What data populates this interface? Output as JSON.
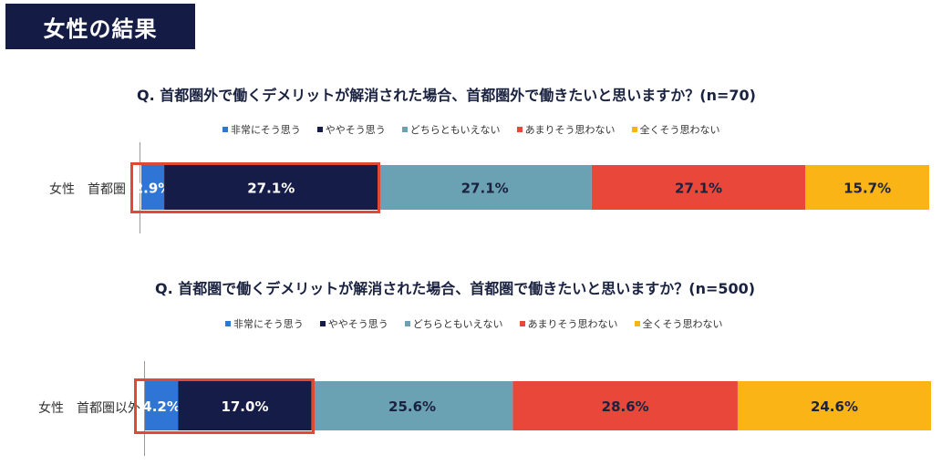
{
  "header": {
    "title": "女性の結果"
  },
  "legend": {
    "items": [
      {
        "label": "非常にそう思う",
        "color": "#2e75d6"
      },
      {
        "label": "ややそう思う",
        "color": "#151c48"
      },
      {
        "label": "どちらともいえない",
        "color": "#6aa2b3"
      },
      {
        "label": "あまりそう思わない",
        "color": "#e8473a"
      },
      {
        "label": "全くそう思わない",
        "color": "#fbb415"
      }
    ]
  },
  "chart_data": [
    {
      "type": "bar",
      "orientation": "horizontal-stacked-100",
      "title": "Q. 首都圏外で働くデメリットが解消された場合、首都圏外で働きたいと思いますか？(n=70)",
      "categories": [
        "女性　首都圏"
      ],
      "series": [
        {
          "name": "非常にそう思う",
          "values": [
            2.9
          ],
          "label": "2.9%"
        },
        {
          "name": "ややそう思う",
          "values": [
            27.1
          ],
          "label": "27.1%"
        },
        {
          "name": "どちらともいえない",
          "values": [
            27.1
          ],
          "label": "27.1%"
        },
        {
          "name": "あまりそう思わない",
          "values": [
            27.1
          ],
          "label": "27.1%"
        },
        {
          "name": "全くそう思わない",
          "values": [
            15.7
          ],
          "label": "15.7%"
        }
      ],
      "xlim": [
        0,
        100
      ],
      "highlighted_series": [
        "非常にそう思う",
        "ややそう思う"
      ]
    },
    {
      "type": "bar",
      "orientation": "horizontal-stacked-100",
      "title": "Q. 首都圏で働くデメリットが解消された場合、首都圏で働きたいと思いますか？(n=500)",
      "categories": [
        "女性　首都圏以外"
      ],
      "series": [
        {
          "name": "非常にそう思う",
          "values": [
            4.2
          ],
          "label": "4.2%"
        },
        {
          "name": "ややそう思う",
          "values": [
            17.0
          ],
          "label": "17.0%"
        },
        {
          "name": "どちらともいえない",
          "values": [
            25.6
          ],
          "label": "25.6%"
        },
        {
          "name": "あまりそう思わない",
          "values": [
            28.6
          ],
          "label": "28.6%"
        },
        {
          "name": "全くそう思わない",
          "values": [
            24.6
          ],
          "label": "24.6%"
        }
      ],
      "xlim": [
        0,
        100
      ],
      "highlighted_series": [
        "非常にそう思う",
        "ややそう思う"
      ]
    }
  ]
}
